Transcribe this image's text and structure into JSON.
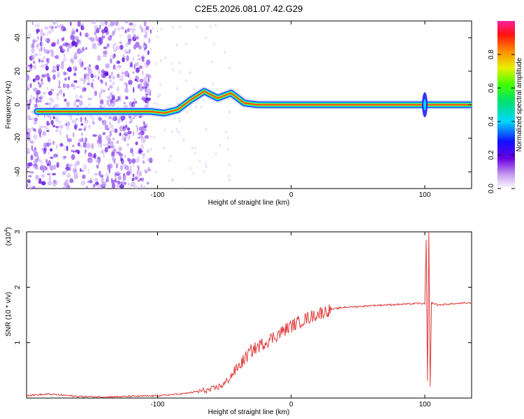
{
  "chart_data": [
    {
      "type": "heatmap",
      "title": "C2E5.2026.081.07.42.G29",
      "xlabel": "Height of straight line (km)",
      "ylabel": "Frequency (Hz)",
      "xlim": [
        -198,
        135
      ],
      "ylim": [
        -50,
        50
      ],
      "xticks": [
        -100,
        0,
        100
      ],
      "yticks": [
        -40,
        -20,
        0,
        20,
        40
      ],
      "colorbar": {
        "label": "Normalized spectral amplitude",
        "range": [
          0,
          1
        ],
        "ticks": [
          "0.0",
          "0.2",
          "0.4",
          "0.6",
          "0.8"
        ],
        "ticks_values": [
          0,
          0.2,
          0.4,
          0.6,
          0.8
        ]
      },
      "ridge": {
        "x": [
          -190,
          -150,
          -105,
          -95,
          -85,
          -75,
          -65,
          -55,
          -45,
          -35,
          -25,
          -10,
          0,
          10,
          50,
          95,
          100,
          135
        ],
        "y": [
          -4,
          -4,
          -4,
          -5,
          -3,
          3,
          8,
          4,
          7,
          1,
          0,
          0,
          0,
          0,
          0,
          0,
          0,
          0
        ]
      }
    },
    {
      "type": "line",
      "xlabel": "Height of straight line (km)",
      "ylabel": "SNR (10 * v/v)",
      "scale_label": "(x10",
      "scale_exp": "4",
      "xlim": [
        -198,
        135
      ],
      "ylim": [
        0,
        3
      ],
      "xticks": [
        -100,
        0,
        100
      ],
      "yticks": [
        1,
        2,
        3
      ],
      "series": [
        {
          "name": "SNR",
          "color": "#e03a3a",
          "x": [
            -198,
            -180,
            -160,
            -140,
            -120,
            -100,
            -90,
            -80,
            -70,
            -60,
            -50,
            -40,
            -30,
            -20,
            -10,
            0,
            10,
            20,
            30,
            40,
            50,
            60,
            70,
            80,
            90,
            95,
            100,
            101,
            102,
            103,
            104,
            105,
            110,
            120,
            135
          ],
          "y": [
            0.05,
            0.07,
            0.03,
            0.02,
            0.03,
            0.04,
            0.06,
            0.08,
            0.12,
            0.15,
            0.25,
            0.55,
            0.85,
            1.0,
            1.15,
            1.3,
            1.42,
            1.52,
            1.6,
            1.64,
            1.65,
            1.67,
            1.68,
            1.69,
            1.7,
            1.71,
            1.7,
            2.85,
            0.3,
            3.0,
            0.2,
            1.72,
            1.68,
            1.7,
            1.72
          ]
        }
      ]
    }
  ]
}
